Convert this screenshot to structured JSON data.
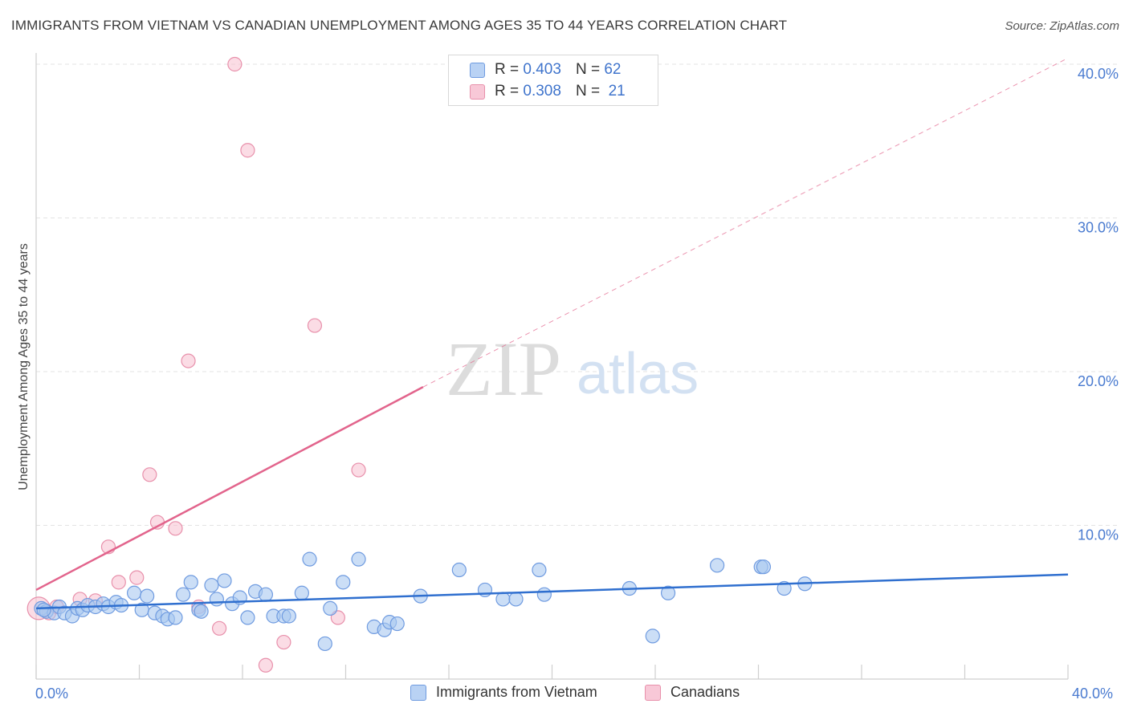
{
  "title": "IMMIGRANTS FROM VIETNAM VS CANADIAN UNEMPLOYMENT AMONG AGES 35 TO 44 YEARS CORRELATION CHART",
  "source": "Source: ZipAtlas.com",
  "watermark": {
    "zip": "ZIP",
    "atlas": "atlas"
  },
  "legend": {
    "series1": {
      "r_label": "R =",
      "r_value": "0.403",
      "n_label": "N =",
      "n_value": "62"
    },
    "series2": {
      "r_label": "R =",
      "r_value": "0.308",
      "n_label": "N =",
      "n_value": "21"
    }
  },
  "colors": {
    "blue_fill": "#a9c8f0",
    "blue_stroke": "#6f9be0",
    "blue_line": "#2f6fcf",
    "pink_fill": "#f7bfd0",
    "pink_stroke": "#e890ab",
    "pink_line": "#e2648c",
    "grid": "#e3e3e3",
    "tick_text": "#4a7bd0"
  },
  "chart_data": {
    "type": "scatter",
    "title": "IMMIGRANTS FROM VIETNAM VS CANADIAN UNEMPLOYMENT AMONG AGES 35 TO 44 YEARS CORRELATION CHART",
    "xlabel": "",
    "ylabel": "Unemployment Among Ages 35 to 44 years",
    "xlim": [
      0,
      40
    ],
    "ylim": [
      0,
      40
    ],
    "x_tick_labels": [
      "0.0%",
      "40.0%"
    ],
    "y_tick_values": [
      10,
      20,
      30,
      40
    ],
    "y_tick_labels": [
      "10.0%",
      "20.0%",
      "30.0%",
      "40.0%"
    ],
    "grid": true,
    "legend_position": "top-center",
    "series": [
      {
        "name": "Immigrants from Vietnam",
        "color": "blue",
        "R": 0.403,
        "N": 62,
        "trend": {
          "x": [
            0,
            40
          ],
          "y": [
            4.6,
            6.8
          ]
        },
        "points": [
          [
            0.2,
            4.6
          ],
          [
            0.4,
            4.4
          ],
          [
            0.7,
            4.3
          ],
          [
            0.9,
            4.7
          ],
          [
            1.1,
            4.3
          ],
          [
            1.4,
            4.1
          ],
          [
            1.6,
            4.6
          ],
          [
            1.8,
            4.5
          ],
          [
            2.0,
            4.8
          ],
          [
            2.3,
            4.7
          ],
          [
            2.6,
            4.9
          ],
          [
            2.8,
            4.7
          ],
          [
            3.1,
            5.0
          ],
          [
            3.3,
            4.8
          ],
          [
            3.8,
            5.6
          ],
          [
            4.1,
            4.5
          ],
          [
            4.3,
            5.4
          ],
          [
            4.6,
            4.3
          ],
          [
            4.9,
            4.1
          ],
          [
            5.1,
            3.9
          ],
          [
            5.4,
            4.0
          ],
          [
            5.7,
            5.5
          ],
          [
            6.0,
            6.3
          ],
          [
            6.3,
            4.5
          ],
          [
            6.4,
            4.4
          ],
          [
            6.8,
            6.1
          ],
          [
            7.0,
            5.2
          ],
          [
            7.3,
            6.4
          ],
          [
            7.6,
            4.9
          ],
          [
            7.9,
            5.3
          ],
          [
            8.2,
            4.0
          ],
          [
            8.5,
            5.7
          ],
          [
            8.9,
            5.5
          ],
          [
            9.2,
            4.1
          ],
          [
            9.6,
            4.1
          ],
          [
            9.8,
            4.1
          ],
          [
            10.3,
            5.6
          ],
          [
            10.6,
            7.8
          ],
          [
            11.2,
            2.3
          ],
          [
            11.4,
            4.6
          ],
          [
            11.9,
            6.3
          ],
          [
            12.5,
            7.8
          ],
          [
            13.1,
            3.4
          ],
          [
            13.5,
            3.2
          ],
          [
            13.7,
            3.7
          ],
          [
            14.0,
            3.6
          ],
          [
            14.9,
            5.4
          ],
          [
            16.4,
            7.1
          ],
          [
            17.4,
            5.8
          ],
          [
            18.1,
            5.2
          ],
          [
            18.6,
            5.2
          ],
          [
            19.5,
            7.1
          ],
          [
            19.7,
            5.5
          ],
          [
            23.0,
            5.9
          ],
          [
            23.9,
            2.8
          ],
          [
            24.5,
            5.6
          ],
          [
            26.4,
            7.4
          ],
          [
            28.1,
            7.3
          ],
          [
            28.2,
            7.3
          ],
          [
            29.0,
            5.9
          ],
          [
            29.8,
            6.2
          ],
          [
            0.3,
            4.5
          ]
        ]
      },
      {
        "name": "Canadians",
        "color": "pink",
        "R": 0.308,
        "N": 21,
        "trend": {
          "x": [
            0,
            15
          ],
          "y": [
            5.8,
            19.0
          ]
        },
        "trend_extended": {
          "x": [
            15,
            40
          ],
          "y": [
            19.0,
            40.4
          ]
        },
        "points": [
          [
            0.1,
            4.6
          ],
          [
            0.5,
            4.3
          ],
          [
            0.8,
            4.7
          ],
          [
            1.7,
            5.2
          ],
          [
            2.3,
            5.1
          ],
          [
            2.8,
            8.6
          ],
          [
            3.2,
            6.3
          ],
          [
            3.9,
            6.6
          ],
          [
            4.4,
            13.3
          ],
          [
            4.7,
            10.2
          ],
          [
            5.4,
            9.8
          ],
          [
            5.9,
            20.7
          ],
          [
            6.3,
            4.7
          ],
          [
            7.1,
            3.3
          ],
          [
            7.7,
            40.0
          ],
          [
            8.2,
            34.4
          ],
          [
            8.9,
            0.9
          ],
          [
            9.6,
            2.4
          ],
          [
            10.8,
            23.0
          ],
          [
            11.7,
            4.0
          ],
          [
            12.5,
            13.6
          ]
        ]
      }
    ]
  },
  "bottom_legend": {
    "series1": "Immigrants from Vietnam",
    "series2": "Canadians"
  }
}
